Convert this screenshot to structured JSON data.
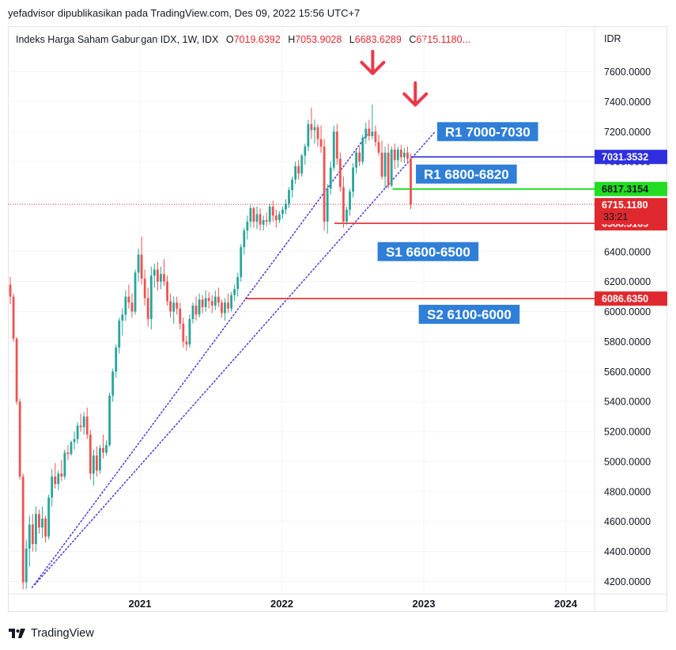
{
  "attribution": "yefadvisor dipublikasikan pada TradingView.com, Des 09, 2022 15:56 UTC+7",
  "legend": {
    "title": "Indeks Harga Saham Gabungan IDX, 1W, IDX",
    "o_key": "O",
    "o_val": "7019.6392",
    "h_key": "H",
    "h_val": "7053.9028",
    "l_key": "L",
    "l_val": "6683.6289",
    "c_key": "C",
    "c_val": "6715.1180",
    "ellipsis": "..."
  },
  "currency": "IDR",
  "footer": {
    "brand": "TradingView",
    "logo_icon": "tradingview-logo-icon"
  },
  "annotations": {
    "r1a": "R1 7000-7030",
    "r1b": "R1 6800-6820",
    "s1": "S1 6600-6500",
    "s2": "S2 6100-6000",
    "arrow_icon": "down-arrow-icon"
  },
  "chart_data": {
    "type": "candlestick",
    "timeframe": "1W",
    "symbol": "Indeks Harga Saham Gabungan IDX",
    "ylim": [
      4120,
      7860
    ],
    "xlim": [
      2020.13,
      2024.17
    ],
    "y_ticks": [
      "7600.0000",
      "7400.0000",
      "7200.0000",
      "7000.0000",
      "6400.0000",
      "6200.0000",
      "6000.0000",
      "5800.0000",
      "5600.0000",
      "5400.0000",
      "5200.0000",
      "5000.0000",
      "4800.0000",
      "4600.0000",
      "4400.0000",
      "4200.0000"
    ],
    "x_ticks": [
      {
        "label": "2021",
        "t": 2021.0
      },
      {
        "label": "2022",
        "t": 2022.0
      },
      {
        "label": "2023",
        "t": 2023.0
      },
      {
        "label": "2024",
        "t": 2024.0
      }
    ],
    "colors": {
      "up": "#26a69a",
      "down": "#ef5350",
      "resistance": "#2f2fe0",
      "support_green": "#22dd22",
      "support_red": "#e0292e",
      "zone_box": "#2f7fd8",
      "trend": "#5b3fd6",
      "arrow": "#ea3a4a"
    },
    "price_lines": [
      {
        "price": 7031.3532,
        "label": "7031.3532",
        "color": "#2f2fe0",
        "text_color": "#ffffff",
        "t_start": 2022.91
      },
      {
        "price": 6817.3154,
        "label": "6817.3154",
        "color": "#22dd22",
        "text_color": "#131722",
        "t_start": 2022.78
      },
      {
        "price": 6588.5165,
        "label": "6588.5165",
        "color": "#e0292e",
        "text_color": "#ffffff",
        "t_start": 2022.37
      },
      {
        "price": 6086.635,
        "label": "6086.6350",
        "color": "#e0292e",
        "text_color": "#ffffff",
        "t_start": 2021.74
      }
    ],
    "last_price": {
      "price": 6715.118,
      "label": "6715.1180",
      "countdown": "33:21"
    },
    "trendlines": [
      {
        "t1": 2020.24,
        "p1": 4160,
        "t2": 2022.6,
        "p2": 7180
      },
      {
        "t1": 2020.26,
        "p1": 4180,
        "t2": 2023.08,
        "p2": 7200
      }
    ],
    "arrows": [
      {
        "t": 2022.64,
        "p": 7630
      },
      {
        "t": 2022.94,
        "p": 7420
      }
    ],
    "candles": [
      {
        "o": 6180,
        "h": 6230,
        "l": 6050,
        "c": 6100
      },
      {
        "o": 6100,
        "h": 6120,
        "l": 5800,
        "c": 5820
      },
      {
        "o": 5820,
        "h": 5830,
        "l": 5380,
        "c": 5400
      },
      {
        "o": 5400,
        "h": 5420,
        "l": 4880,
        "c": 4900
      },
      {
        "o": 4900,
        "h": 4920,
        "l": 4150,
        "c": 4195
      },
      {
        "o": 4195,
        "h": 4480,
        "l": 4150,
        "c": 4420
      },
      {
        "o": 4420,
        "h": 4640,
        "l": 4300,
        "c": 4580
      },
      {
        "o": 4580,
        "h": 4650,
        "l": 4400,
        "c": 4450
      },
      {
        "o": 4450,
        "h": 4700,
        "l": 4400,
        "c": 4650
      },
      {
        "o": 4650,
        "h": 4680,
        "l": 4520,
        "c": 4560
      },
      {
        "o": 4560,
        "h": 4700,
        "l": 4490,
        "c": 4620
      },
      {
        "o": 4620,
        "h": 4640,
        "l": 4460,
        "c": 4500
      },
      {
        "o": 4500,
        "h": 4780,
        "l": 4480,
        "c": 4760
      },
      {
        "o": 4760,
        "h": 4950,
        "l": 4700,
        "c": 4900
      },
      {
        "o": 4900,
        "h": 4990,
        "l": 4820,
        "c": 4850
      },
      {
        "o": 4850,
        "h": 4940,
        "l": 4810,
        "c": 4920
      },
      {
        "o": 4920,
        "h": 5010,
        "l": 4870,
        "c": 4900
      },
      {
        "o": 4900,
        "h": 5080,
        "l": 4880,
        "c": 5060
      },
      {
        "o": 5060,
        "h": 5110,
        "l": 5010,
        "c": 5050
      },
      {
        "o": 5050,
        "h": 5140,
        "l": 5040,
        "c": 5130
      },
      {
        "o": 5130,
        "h": 5200,
        "l": 5080,
        "c": 5150
      },
      {
        "o": 5150,
        "h": 5260,
        "l": 5120,
        "c": 5240
      },
      {
        "o": 5240,
        "h": 5320,
        "l": 5200,
        "c": 5230
      },
      {
        "o": 5230,
        "h": 5330,
        "l": 5180,
        "c": 5300
      },
      {
        "o": 5300,
        "h": 5360,
        "l": 5150,
        "c": 5180
      },
      {
        "o": 5180,
        "h": 5210,
        "l": 4880,
        "c": 4920
      },
      {
        "o": 4920,
        "h": 5080,
        "l": 4840,
        "c": 5040
      },
      {
        "o": 5040,
        "h": 5100,
        "l": 4900,
        "c": 4940
      },
      {
        "o": 4940,
        "h": 5110,
        "l": 4920,
        "c": 5090
      },
      {
        "o": 5090,
        "h": 5180,
        "l": 5020,
        "c": 5060
      },
      {
        "o": 5060,
        "h": 5140,
        "l": 5040,
        "c": 5110
      },
      {
        "o": 5110,
        "h": 5460,
        "l": 5100,
        "c": 5440
      },
      {
        "o": 5440,
        "h": 5620,
        "l": 5400,
        "c": 5600
      },
      {
        "o": 5600,
        "h": 5780,
        "l": 5560,
        "c": 5760
      },
      {
        "o": 5760,
        "h": 5960,
        "l": 5720,
        "c": 5940
      },
      {
        "o": 5940,
        "h": 6020,
        "l": 5840,
        "c": 5980
      },
      {
        "o": 5980,
        "h": 6140,
        "l": 5940,
        "c": 6100
      },
      {
        "o": 6100,
        "h": 6180,
        "l": 6020,
        "c": 6060
      },
      {
        "o": 6060,
        "h": 6120,
        "l": 5960,
        "c": 6000
      },
      {
        "o": 6000,
        "h": 6280,
        "l": 5980,
        "c": 6260
      },
      {
        "o": 6260,
        "h": 6420,
        "l": 6200,
        "c": 6380
      },
      {
        "o": 6380,
        "h": 6500,
        "l": 6180,
        "c": 6220
      },
      {
        "o": 6220,
        "h": 6280,
        "l": 6040,
        "c": 6090
      },
      {
        "o": 6090,
        "h": 6160,
        "l": 5900,
        "c": 5950
      },
      {
        "o": 5950,
        "h": 6300,
        "l": 5880,
        "c": 6240
      },
      {
        "o": 6240,
        "h": 6320,
        "l": 6160,
        "c": 6280
      },
      {
        "o": 6280,
        "h": 6330,
        "l": 6140,
        "c": 6200
      },
      {
        "o": 6200,
        "h": 6300,
        "l": 6150,
        "c": 6250
      },
      {
        "o": 6250,
        "h": 6350,
        "l": 6170,
        "c": 6200
      },
      {
        "o": 6200,
        "h": 6240,
        "l": 6040,
        "c": 6070
      },
      {
        "o": 6070,
        "h": 6120,
        "l": 5960,
        "c": 6000
      },
      {
        "o": 6000,
        "h": 6100,
        "l": 5920,
        "c": 6060
      },
      {
        "o": 6060,
        "h": 6100,
        "l": 5980,
        "c": 6020
      },
      {
        "o": 6020,
        "h": 6060,
        "l": 5880,
        "c": 5920
      },
      {
        "o": 5920,
        "h": 5960,
        "l": 5760,
        "c": 5800
      },
      {
        "o": 5800,
        "h": 5840,
        "l": 5740,
        "c": 5780
      },
      {
        "o": 5780,
        "h": 5980,
        "l": 5760,
        "c": 5950
      },
      {
        "o": 5950,
        "h": 6060,
        "l": 5920,
        "c": 6040
      },
      {
        "o": 6040,
        "h": 6100,
        "l": 5940,
        "c": 5980
      },
      {
        "o": 5980,
        "h": 6120,
        "l": 5960,
        "c": 6080
      },
      {
        "o": 6080,
        "h": 6110,
        "l": 5990,
        "c": 6030
      },
      {
        "o": 6030,
        "h": 6140,
        "l": 6000,
        "c": 6090
      },
      {
        "o": 6090,
        "h": 6130,
        "l": 6020,
        "c": 6070
      },
      {
        "o": 6070,
        "h": 6110,
        "l": 5990,
        "c": 6040
      },
      {
        "o": 6040,
        "h": 6140,
        "l": 6010,
        "c": 6100
      },
      {
        "o": 6100,
        "h": 6160,
        "l": 6030,
        "c": 6060
      },
      {
        "o": 6060,
        "h": 6080,
        "l": 5960,
        "c": 5990
      },
      {
        "o": 5990,
        "h": 6090,
        "l": 5940,
        "c": 6060
      },
      {
        "o": 6060,
        "h": 6120,
        "l": 5990,
        "c": 6020
      },
      {
        "o": 6020,
        "h": 6130,
        "l": 6000,
        "c": 6110
      },
      {
        "o": 6110,
        "h": 6180,
        "l": 6070,
        "c": 6150
      },
      {
        "o": 6150,
        "h": 6260,
        "l": 6100,
        "c": 6230
      },
      {
        "o": 6230,
        "h": 6450,
        "l": 6200,
        "c": 6430
      },
      {
        "o": 6430,
        "h": 6560,
        "l": 6380,
        "c": 6540
      },
      {
        "o": 6540,
        "h": 6640,
        "l": 6480,
        "c": 6600
      },
      {
        "o": 6600,
        "h": 6710,
        "l": 6560,
        "c": 6690
      },
      {
        "o": 6690,
        "h": 6700,
        "l": 6560,
        "c": 6600
      },
      {
        "o": 6600,
        "h": 6700,
        "l": 6550,
        "c": 6650
      },
      {
        "o": 6650,
        "h": 6690,
        "l": 6540,
        "c": 6580
      },
      {
        "o": 6580,
        "h": 6640,
        "l": 6540,
        "c": 6610
      },
      {
        "o": 6610,
        "h": 6660,
        "l": 6570,
        "c": 6600
      },
      {
        "o": 6600,
        "h": 6720,
        "l": 6580,
        "c": 6700
      },
      {
        "o": 6700,
        "h": 6740,
        "l": 6600,
        "c": 6640
      },
      {
        "o": 6640,
        "h": 6680,
        "l": 6560,
        "c": 6610
      },
      {
        "o": 6610,
        "h": 6670,
        "l": 6590,
        "c": 6650
      },
      {
        "o": 6650,
        "h": 6700,
        "l": 6620,
        "c": 6680
      },
      {
        "o": 6680,
        "h": 6750,
        "l": 6650,
        "c": 6720
      },
      {
        "o": 6720,
        "h": 6830,
        "l": 6690,
        "c": 6810
      },
      {
        "o": 6810,
        "h": 6900,
        "l": 6760,
        "c": 6880
      },
      {
        "o": 6880,
        "h": 7000,
        "l": 6850,
        "c": 6970
      },
      {
        "o": 6970,
        "h": 7010,
        "l": 6880,
        "c": 6920
      },
      {
        "o": 6920,
        "h": 7050,
        "l": 6900,
        "c": 7040
      },
      {
        "o": 7040,
        "h": 7120,
        "l": 6980,
        "c": 7100
      },
      {
        "o": 7100,
        "h": 7280,
        "l": 7070,
        "c": 7250
      },
      {
        "o": 7250,
        "h": 7360,
        "l": 7150,
        "c": 7210
      },
      {
        "o": 7210,
        "h": 7280,
        "l": 7120,
        "c": 7230
      },
      {
        "o": 7230,
        "h": 7250,
        "l": 7100,
        "c": 7150
      },
      {
        "o": 7150,
        "h": 7240,
        "l": 7060,
        "c": 7100
      },
      {
        "o": 7100,
        "h": 7150,
        "l": 6540,
        "c": 6600
      },
      {
        "o": 6600,
        "h": 6850,
        "l": 6520,
        "c": 6820
      },
      {
        "o": 6820,
        "h": 7000,
        "l": 6780,
        "c": 6960
      },
      {
        "o": 6960,
        "h": 7240,
        "l": 6940,
        "c": 7200
      },
      {
        "o": 7200,
        "h": 7250,
        "l": 6980,
        "c": 7020
      },
      {
        "o": 7020,
        "h": 7060,
        "l": 6800,
        "c": 6830
      },
      {
        "o": 6830,
        "h": 6900,
        "l": 6560,
        "c": 6600
      },
      {
        "o": 6600,
        "h": 6700,
        "l": 6580,
        "c": 6680
      },
      {
        "o": 6680,
        "h": 6820,
        "l": 6640,
        "c": 6800
      },
      {
        "o": 6800,
        "h": 6990,
        "l": 6760,
        "c": 6960
      },
      {
        "o": 6960,
        "h": 7080,
        "l": 6920,
        "c": 7060
      },
      {
        "o": 7060,
        "h": 7100,
        "l": 6970,
        "c": 7000
      },
      {
        "o": 7000,
        "h": 7180,
        "l": 6980,
        "c": 7160
      },
      {
        "o": 7160,
        "h": 7260,
        "l": 7120,
        "c": 7220
      },
      {
        "o": 7220,
        "h": 7280,
        "l": 7140,
        "c": 7170
      },
      {
        "o": 7170,
        "h": 7380,
        "l": 7150,
        "c": 7200
      },
      {
        "o": 7200,
        "h": 7240,
        "l": 7100,
        "c": 7130
      },
      {
        "o": 7130,
        "h": 7180,
        "l": 7040,
        "c": 7060
      },
      {
        "o": 7060,
        "h": 7140,
        "l": 6880,
        "c": 6900
      },
      {
        "o": 6900,
        "h": 7100,
        "l": 6820,
        "c": 7060
      },
      {
        "o": 7060,
        "h": 7120,
        "l": 6820,
        "c": 6840
      },
      {
        "o": 6840,
        "h": 7100,
        "l": 6830,
        "c": 7080
      },
      {
        "o": 7080,
        "h": 7120,
        "l": 6950,
        "c": 7010
      },
      {
        "o": 7010,
        "h": 7100,
        "l": 6960,
        "c": 7080
      },
      {
        "o": 7080,
        "h": 7110,
        "l": 7000,
        "c": 7030
      },
      {
        "o": 7030,
        "h": 7090,
        "l": 6990,
        "c": 7060
      },
      {
        "o": 7060,
        "h": 7100,
        "l": 6990,
        "c": 7019.6392
      },
      {
        "o": 7019.6392,
        "h": 7053.9028,
        "l": 6683.6289,
        "c": 6715.118
      }
    ]
  }
}
